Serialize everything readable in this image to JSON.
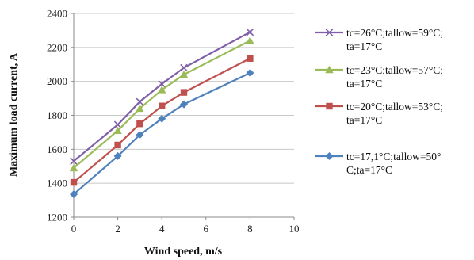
{
  "chart_data": {
    "type": "line",
    "xlabel": "Wind speed, m/s",
    "ylabel": "Maximum load current, A",
    "xlim": [
      0,
      10
    ],
    "ylim": [
      1200,
      2400
    ],
    "x_ticks": [
      0,
      2,
      4,
      6,
      8,
      10
    ],
    "y_ticks": [
      1200,
      1400,
      1600,
      1800,
      2000,
      2200,
      2400
    ],
    "grid": "horizontal",
    "legend_position": "right",
    "series": [
      {
        "name_lines": [
          "tc=26°C;tallow=59°C;",
          "ta=17°C"
        ],
        "color": "#7f5fa8",
        "marker": "x",
        "x": [
          0,
          2,
          3,
          4,
          5,
          8
        ],
        "y": [
          1530,
          1745,
          1880,
          1985,
          2080,
          2290
        ]
      },
      {
        "name_lines": [
          "tc=23°C;tallow=57°C;",
          "ta=17°C"
        ],
        "color": "#9bbb59",
        "marker": "triangle",
        "x": [
          0,
          2,
          3,
          4,
          5,
          8
        ],
        "y": [
          1490,
          1710,
          1840,
          1950,
          2040,
          2240
        ]
      },
      {
        "name_lines": [
          "tc=20°C;tallow=53°C;",
          "ta=17°C"
        ],
        "color": "#c0504d",
        "marker": "square",
        "x": [
          0,
          2,
          3,
          4,
          5,
          8
        ],
        "y": [
          1405,
          1625,
          1750,
          1855,
          1935,
          2135
        ]
      },
      {
        "name_lines": [
          "tc=17,1°C;tallow=50°",
          "C;ta=17°C"
        ],
        "color": "#4f81bd",
        "marker": "diamond",
        "x": [
          0,
          2,
          3,
          4,
          5,
          8
        ],
        "y": [
          1335,
          1560,
          1685,
          1780,
          1865,
          2050
        ]
      }
    ]
  }
}
